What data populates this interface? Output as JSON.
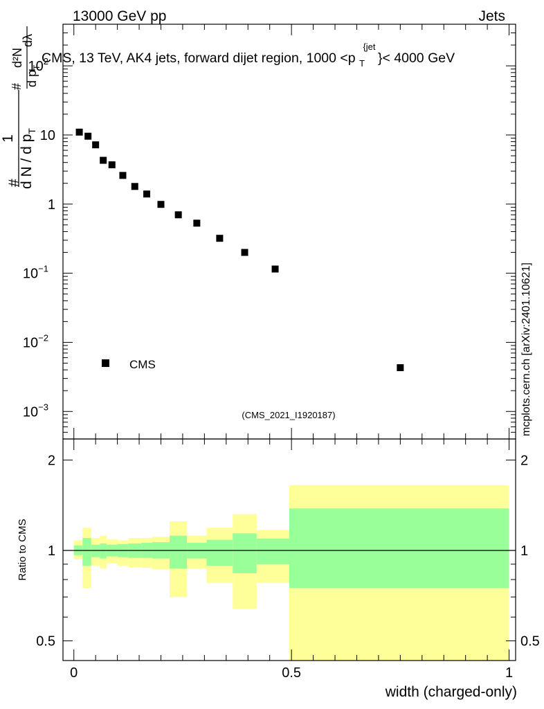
{
  "header": {
    "left": "13000 GeV pp",
    "right": "Jets"
  },
  "side_label": "mcplots.cern.ch [arXiv:2401.10621]",
  "analysis_id": "(CMS_2021_I1920187)",
  "chart_data": [
    {
      "type": "scatter",
      "name": "main",
      "title": "CMS, 13 TeV, AK4 jets, forward dijet region, 1000 <p_T^{jet}< 4000 GeV",
      "title_parts": {
        "pre": "CMS, 13 TeV, AK4 jets, forward dijet region, 1000 <p",
        "sup": "{jet",
        "sub": "T",
        "post": "}< 4000 GeV"
      },
      "ylabel_parts": {
        "num": "1",
        "den": "d N / d p",
        "den_sub": "T",
        "hash": "#",
        "d2": "d²N",
        "dpt_dl": "d p",
        "dpt_sub": "T",
        "dl": "dλ"
      },
      "yscale": "log",
      "ylim": [
        0.0004,
        400
      ],
      "yticks": [
        {
          "v": 0.001,
          "base": "10",
          "exp": "−3"
        },
        {
          "v": 0.01,
          "base": "10",
          "exp": "−2"
        },
        {
          "v": 0.1,
          "base": "10",
          "exp": "−1"
        },
        {
          "v": 1,
          "label": "1"
        },
        {
          "v": 10,
          "label": "10"
        },
        {
          "v": 100,
          "base": "10",
          "exp": "2"
        }
      ],
      "xlim": [
        -0.025,
        1.015
      ],
      "grid": false,
      "legend": {
        "position": "bottom-left",
        "entries": [
          "CMS"
        ]
      },
      "series": [
        {
          "name": "CMS",
          "x": [
            0.0125,
            0.0325,
            0.05,
            0.0675,
            0.0875,
            0.1125,
            0.14,
            0.1675,
            0.2,
            0.24,
            0.2825,
            0.335,
            0.3925,
            0.4625,
            0.75
          ],
          "y": [
            11.0,
            9.6,
            7.2,
            4.3,
            3.7,
            2.6,
            1.8,
            1.4,
            0.99,
            0.7,
            0.53,
            0.32,
            0.2,
            0.115,
            0.0043
          ]
        }
      ]
    },
    {
      "type": "area",
      "name": "ratio",
      "ylabel": "Ratio to CMS",
      "yscale": "log",
      "ylim": [
        0.43,
        2.35
      ],
      "yticks": [
        {
          "v": 0.5,
          "label": "0.5"
        },
        {
          "v": 1,
          "label": "1"
        },
        {
          "v": 2,
          "label": "2"
        }
      ],
      "xlim": [
        -0.025,
        1.015
      ],
      "xticks": [
        {
          "v": 0,
          "label": "0"
        },
        {
          "v": 0.5,
          "label": "0.5"
        },
        {
          "v": 1,
          "label": "1"
        }
      ],
      "xlabel": "width (charged-only)",
      "reference_line": 1,
      "colors": {
        "outer_band": "#ffff99",
        "inner_band": "#99ff99",
        "marker": "#000000",
        "analysis_id": "#a0a0a0",
        "side_label": "#808080"
      },
      "bins": [
        {
          "lo": 0.0,
          "hi": 0.02,
          "y_lo": 0.935,
          "y_hi": 1.08,
          "g_lo": 0.965,
          "g_hi": 1.04
        },
        {
          "lo": 0.02,
          "hi": 0.04,
          "y_lo": 0.75,
          "y_hi": 1.19,
          "g_lo": 0.89,
          "g_hi": 1.1
        },
        {
          "lo": 0.04,
          "hi": 0.06,
          "y_lo": 0.89,
          "y_hi": 1.1,
          "g_lo": 0.95,
          "g_hi": 1.045
        },
        {
          "lo": 0.06,
          "hi": 0.075,
          "y_lo": 0.87,
          "y_hi": 1.12,
          "g_lo": 0.94,
          "g_hi": 1.055
        },
        {
          "lo": 0.075,
          "hi": 0.1,
          "y_lo": 0.905,
          "y_hi": 1.09,
          "g_lo": 0.955,
          "g_hi": 1.045
        },
        {
          "lo": 0.1,
          "hi": 0.125,
          "y_lo": 0.89,
          "y_hi": 1.08,
          "g_lo": 0.95,
          "g_hi": 1.05
        },
        {
          "lo": 0.125,
          "hi": 0.155,
          "y_lo": 0.88,
          "y_hi": 1.1,
          "g_lo": 0.945,
          "g_hi": 1.055
        },
        {
          "lo": 0.155,
          "hi": 0.18,
          "y_lo": 0.875,
          "y_hi": 1.1,
          "g_lo": 0.945,
          "g_hi": 1.06
        },
        {
          "lo": 0.18,
          "hi": 0.22,
          "y_lo": 0.865,
          "y_hi": 1.11,
          "g_lo": 0.94,
          "g_hi": 1.065
        },
        {
          "lo": 0.22,
          "hi": 0.26,
          "y_lo": 0.7,
          "y_hi": 1.25,
          "g_lo": 0.87,
          "g_hi": 1.12
        },
        {
          "lo": 0.26,
          "hi": 0.305,
          "y_lo": 0.87,
          "y_hi": 1.12,
          "g_lo": 0.94,
          "g_hi": 1.06
        },
        {
          "lo": 0.305,
          "hi": 0.365,
          "y_lo": 0.78,
          "y_hi": 1.19,
          "g_lo": 0.89,
          "g_hi": 1.085
        },
        {
          "lo": 0.365,
          "hi": 0.42,
          "y_lo": 0.64,
          "y_hi": 1.32,
          "g_lo": 0.84,
          "g_hi": 1.14
        },
        {
          "lo": 0.42,
          "hi": 0.495,
          "y_lo": 0.78,
          "y_hi": 1.17,
          "g_lo": 0.9,
          "g_hi": 1.095
        },
        {
          "lo": 0.495,
          "hi": 1.0,
          "y_lo": 0.43,
          "y_hi": 1.65,
          "g_lo": 0.75,
          "g_hi": 1.38
        }
      ]
    }
  ]
}
